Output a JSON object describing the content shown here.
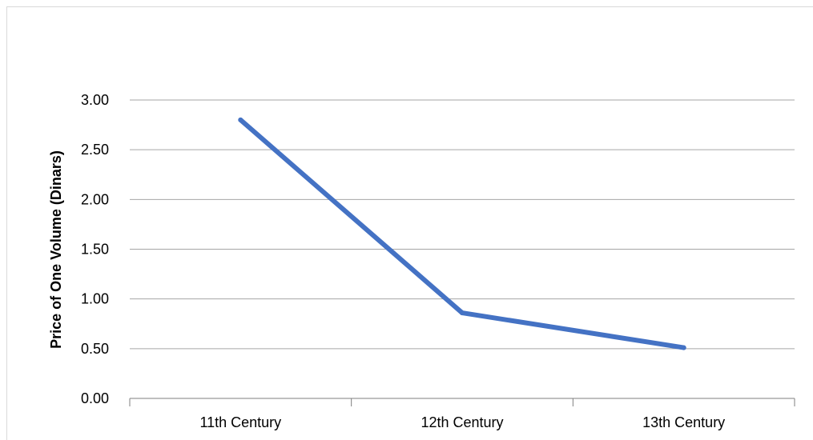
{
  "chart_data": {
    "type": "line",
    "title": "",
    "xlabel": "",
    "ylabel": "Price of One Volume (Dinars)",
    "categories": [
      "11th Century",
      "12th Century",
      "13th Century"
    ],
    "series": [
      {
        "values": [
          2.8,
          0.86,
          0.51
        ]
      }
    ],
    "ylim": [
      0,
      3
    ],
    "yticks": [
      "0.00",
      "0.50",
      "1.00",
      "1.50",
      "2.00",
      "2.50",
      "3.00"
    ],
    "grid": true,
    "legend": "none",
    "colors": {
      "line": "#4472C4",
      "grid": "#a6a6a6",
      "axis": "#7f7f7f"
    }
  }
}
